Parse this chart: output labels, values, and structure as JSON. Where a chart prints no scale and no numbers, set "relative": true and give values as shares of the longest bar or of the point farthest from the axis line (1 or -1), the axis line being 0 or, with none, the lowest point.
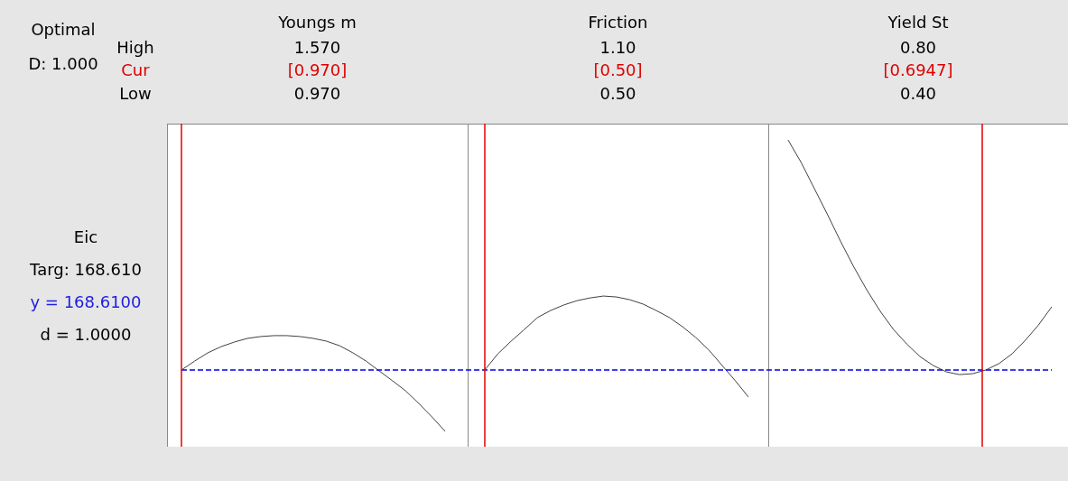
{
  "chart_data": [
    {
      "type": "other",
      "annotations": [
        "Optimal",
        "D: 1.000",
        "High",
        "Cur",
        "Low",
        "Eic",
        "Targ: 168.610",
        "y = 168.6100",
        "d = 1.0000"
      ]
    },
    {
      "type": "line",
      "relative": true,
      "annotations": [
        "Youngs m",
        "1.570",
        "[0.970]",
        "0.970",
        "Friction",
        "1.10",
        "[0.50]",
        "0.50",
        "Yield St",
        "0.80",
        "[0.6947]",
        "0.40"
      ],
      "categories": [
        null,
        null,
        null,
        null,
        null,
        null,
        null,
        null,
        null,
        null,
        null,
        null,
        null,
        null,
        null,
        null,
        null,
        null,
        null,
        null,
        null,
        null,
        null,
        null,
        null,
        null,
        null,
        null,
        null,
        null,
        null,
        null,
        null,
        null,
        null,
        null,
        null,
        null,
        null,
        null,
        null,
        null,
        null,
        null,
        null,
        null,
        null,
        null,
        null,
        null,
        null,
        null,
        null,
        null,
        null,
        null,
        null,
        null,
        null,
        null,
        null,
        null,
        null,
        null,
        null,
        null,
        null
      ],
      "series": [
        {
          "color": "#404040",
          "values": [
            0.25,
            0.279,
            0.306,
            0.326,
            0.341,
            0.353,
            0.359,
            0.362,
            0.362,
            0.359,
            0.353,
            0.344,
            0.329,
            0.306,
            0.279,
            0.247,
            0.215,
            0.182,
            0.141,
            0.097,
            0.05,
            null,
            null,
            null,
            null,
            null,
            null,
            null,
            null,
            null,
            null,
            null,
            null,
            null,
            null,
            null,
            null,
            null,
            null,
            null,
            null,
            null,
            null,
            null,
            null,
            null,
            null,
            null,
            null,
            null,
            null,
            null,
            null,
            null,
            null,
            null,
            null,
            null,
            null,
            null,
            null,
            null,
            null,
            null,
            null,
            null,
            null
          ]
        },
        {
          "color": "#404040",
          "values": [
            null,
            null,
            null,
            null,
            null,
            null,
            null,
            null,
            null,
            null,
            null,
            null,
            null,
            null,
            null,
            null,
            null,
            null,
            null,
            null,
            null,
            null,
            null,
            0.25,
            0.303,
            0.344,
            0.382,
            0.421,
            0.444,
            0.462,
            0.476,
            0.485,
            0.491,
            0.488,
            0.479,
            0.465,
            0.444,
            0.421,
            0.391,
            0.356,
            0.315,
            0.265,
            0.215,
            0.162,
            null,
            null,
            null,
            null,
            null,
            null,
            null,
            null,
            null,
            null,
            null,
            null,
            null,
            null,
            null,
            null,
            null,
            null,
            null,
            null,
            null,
            null,
            null
          ]
        },
        {
          "color": "#404040",
          "values": [
            null,
            null,
            null,
            null,
            null,
            null,
            null,
            null,
            null,
            null,
            null,
            null,
            null,
            null,
            null,
            null,
            null,
            null,
            null,
            null,
            null,
            null,
            null,
            null,
            null,
            null,
            null,
            null,
            null,
            null,
            null,
            null,
            null,
            null,
            null,
            null,
            null,
            null,
            null,
            null,
            null,
            null,
            null,
            null,
            null,
            null,
            1.0,
            0.926,
            0.841,
            0.756,
            0.668,
            0.585,
            0.509,
            0.441,
            0.382,
            0.335,
            0.294,
            0.265,
            0.244,
            0.235,
            0.238,
            0.25,
            0.271,
            0.303,
            0.347,
            0.397,
            0.456
          ]
        }
      ],
      "ref_lines": [
        {
          "axis": "y",
          "value": 0.25,
          "color": "#0000e0",
          "line_style": "dashed"
        }
      ]
    }
  ]
}
